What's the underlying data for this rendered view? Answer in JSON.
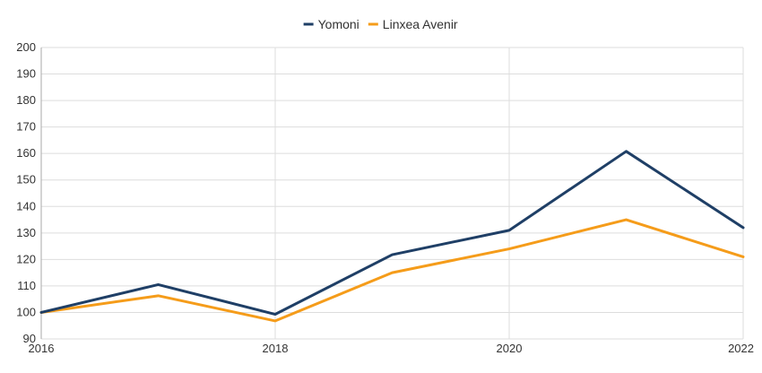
{
  "chart_data": {
    "type": "line",
    "title": "",
    "xlabel": "",
    "ylabel": "",
    "x": [
      2016,
      2017,
      2018,
      2019,
      2020,
      2021,
      2022
    ],
    "x_tick_labels": [
      "2016",
      "2018",
      "2020",
      "2022"
    ],
    "x_tick_values": [
      2016,
      2018,
      2020,
      2022
    ],
    "ylim": [
      90,
      200
    ],
    "y_ticks": [
      90,
      100,
      110,
      120,
      130,
      140,
      150,
      160,
      170,
      180,
      190,
      200
    ],
    "grid": true,
    "legend_position": "top-center",
    "series": [
      {
        "name": "Yomoni",
        "color": "#1f3f66",
        "values": [
          100,
          110.5,
          99.3,
          121.8,
          131,
          160.8,
          132
        ]
      },
      {
        "name": "Linxea Avenir",
        "color": "#f59c1a",
        "values": [
          100,
          106.3,
          96.8,
          115,
          124,
          135,
          121
        ]
      }
    ]
  }
}
